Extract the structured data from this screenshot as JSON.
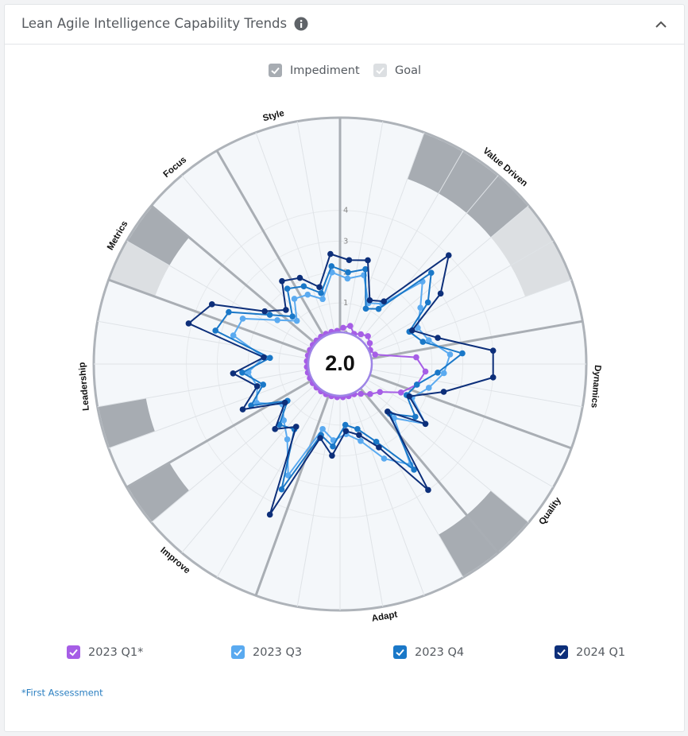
{
  "chart_data": {
    "type": "radar",
    "title": "Lean Agile Intelligence Capability Trends",
    "score": "2.0",
    "footnote": "*First Assessment",
    "dimensions": [
      "Value Driven",
      "Dynamics",
      "Quality",
      "Adapt",
      "Improve",
      "Leadership",
      "Metrics",
      "Focus",
      "Style"
    ],
    "dimension_item_counts": [
      8,
      3,
      3,
      6,
      4,
      5,
      2,
      2,
      3
    ],
    "rlim": [
      0,
      7
    ],
    "rticks": [
      0,
      1,
      2,
      3,
      4
    ],
    "bands": [
      {
        "name": "Impediment",
        "color": "#a7acb2",
        "items": [
          2,
          3,
          4,
          13,
          14,
          23,
          25,
          30
        ]
      },
      {
        "name": "Goal",
        "color": "#dcdfe2",
        "items": [
          5,
          6,
          29
        ]
      }
    ],
    "series": [
      {
        "name": "2023 Q1*",
        "color": "#a65ee6",
        "values": [
          0.2,
          0.3,
          0.1,
          0.2,
          0.3,
          0.2,
          0.1,
          0.2,
          1.5,
          1.8,
          1.6,
          1.2,
          0.6,
          0.4,
          0.2,
          0.1,
          0.1,
          0.1,
          0.1,
          0.1,
          0.1,
          0.1,
          0.1,
          0.1,
          0.1,
          0.1,
          0.1,
          0.1,
          0.1,
          0.1,
          0.1,
          0.1,
          0.1,
          0.1,
          0.1,
          0.1
        ]
      },
      {
        "name": "2023 Q3",
        "color": "#5aaaf0",
        "values": [
          1.8,
          2.0,
          1.2,
          1.4,
          2.8,
          2.2,
          1.8,
          2.0,
          2.6,
          2.4,
          2.0,
          1.6,
          2.4,
          1.5,
          3.0,
          2.4,
          1.6,
          1.3,
          1.5,
          1.2,
          3.0,
          2.0,
          1.6,
          1.3,
          2.0,
          1.8,
          2.0,
          1.5,
          2.6,
          2.5,
          1.5,
          1.0,
          1.6,
          1.5,
          1.2,
          2.0
        ]
      },
      {
        "name": "2023 Q4",
        "color": "#1a78c8",
        "values": [
          2.0,
          2.2,
          1.0,
          1.2,
          3.2,
          2.5,
          1.5,
          1.8,
          3.0,
          2.2,
          1.6,
          1.4,
          2.0,
          1.3,
          3.2,
          1.8,
          1.2,
          1.0,
          1.7,
          1.4,
          3.5,
          1.6,
          1.8,
          1.1,
          2.2,
          1.6,
          2.2,
          1.3,
          3.2,
          3.0,
          1.8,
          1.2,
          2.0,
          1.8,
          1.4,
          2.2
        ]
      },
      {
        "name": "2024 Q1",
        "color": "#0d2f7a",
        "values": [
          2.4,
          2.5,
          1.3,
          1.5,
          4.0,
          3.0,
          1.6,
          2.3,
          4.0,
          4.0,
          2.5,
          1.5,
          2.4,
          1.2,
          4.0,
          2.0,
          1.4,
          1.2,
          2.0,
          1.5,
          4.4,
          1.5,
          2.0,
          1.2,
          2.5,
          1.8,
          2.5,
          1.5,
          4.1,
          3.6,
          2.0,
          1.5,
          2.3,
          2.1,
          1.6,
          2.6
        ]
      }
    ]
  }
}
